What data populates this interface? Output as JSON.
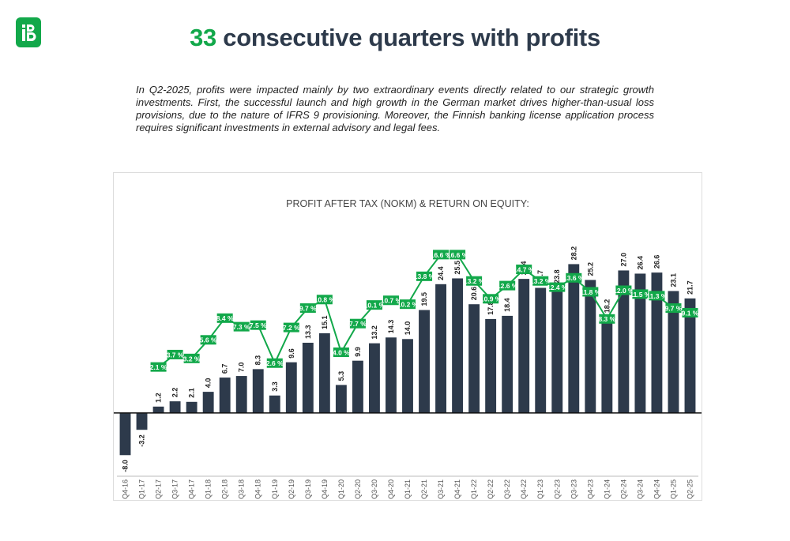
{
  "header": {
    "logo_icon": "company-logo-icon",
    "title_number": "33",
    "title_rest": " consecutive quarters with profits",
    "accent_color": "#12a84a",
    "title_color": "#2d3a4b"
  },
  "intro_text": "In Q2-2025, profits were impacted mainly by two extraordinary events directly related to our strategic growth investments.  First, the successful launch and high growth in the German market drives higher-than-usual loss provisions, due to the nature of IFRS 9 provisioning.   Moreover, the Finnish banking license application process requires significant investments in external advisory and legal fees.",
  "chart_data": {
    "type": "bar",
    "title": "PROFIT AFTER TAX (NOKM) & RETURN ON EQUITY:",
    "categories": [
      "Q4-16",
      "Q1-17",
      "Q2-17",
      "Q3-17",
      "Q4-17",
      "Q1-18",
      "Q2-18",
      "Q3-18",
      "Q4-18",
      "Q1-19",
      "Q2-19",
      "Q3-19",
      "Q4-19",
      "Q1-20",
      "Q2-20",
      "Q3-20",
      "Q4-20",
      "Q1-21",
      "Q2-21",
      "Q3-21",
      "Q4-21",
      "Q1-22",
      "Q2-22",
      "Q3-22",
      "Q4-22",
      "Q1-23",
      "Q2-23",
      "Q3-23",
      "Q4-23",
      "Q1-24",
      "Q2-24",
      "Q3-24",
      "Q4-24",
      "Q1-25",
      "Q2-25"
    ],
    "series": [
      {
        "kind": "bar",
        "color": "#2d3a4b",
        "values": [
          -8.0,
          -3.2,
          1.2,
          2.2,
          2.1,
          4.0,
          6.7,
          7.0,
          8.3,
          3.3,
          9.6,
          13.3,
          15.1,
          5.3,
          9.9,
          13.2,
          14.3,
          14.0,
          19.5,
          24.4,
          25.5,
          20.6,
          17.8,
          18.4,
          25.4,
          23.7,
          23.8,
          28.2,
          25.2,
          18.2,
          27.0,
          26.4,
          26.6,
          23.1,
          21.7
        ],
        "labels": [
          "-8.0",
          "-3.2",
          "1.2",
          "2.2",
          "2.1",
          "4.0",
          "6.7",
          "7.0",
          "8.3",
          "3.3",
          "9.6",
          "13.3",
          "15.1",
          "5.3",
          "9.9",
          "13.2",
          "14.3",
          "14.0",
          "19.5",
          "24.4",
          "25.5",
          "20.6",
          "17.8",
          "18.4",
          "25.4",
          "23.7",
          "23.8",
          "28.2",
          "25.2",
          "18.2",
          "27.0",
          "26.4",
          "26.6",
          "23.1",
          "21.7"
        ]
      },
      {
        "kind": "line",
        "color": "#12a84a",
        "values": [
          null,
          null,
          2.1,
          3.7,
          3.2,
          5.6,
          8.4,
          7.3,
          7.5,
          2.6,
          7.2,
          9.7,
          10.8,
          4.0,
          7.7,
          10.1,
          10.7,
          10.2,
          13.8,
          16.6,
          16.6,
          13.2,
          10.9,
          12.6,
          14.7,
          13.2,
          12.4,
          13.6,
          11.8,
          8.3,
          12.0,
          11.5,
          11.3,
          9.7,
          9.1
        ],
        "labels": [
          "",
          "",
          "2.1 %",
          "3.7 %",
          "3.2 %",
          "5.6 %",
          "8.4 %",
          "7.3 %",
          "7.5 %",
          "2.6 %",
          "7.2 %",
          "9.7 %",
          "10.8 %",
          "4.0 %",
          "7.7 %",
          "10.1 %",
          "10.7 %",
          "10.2 %",
          "13.8 %",
          "16.6 %",
          "16.6 %",
          "13.2 %",
          "10.9 %",
          "12.6 %",
          "14.7 %",
          "13.2 %",
          "12.4 %",
          "13.6 %",
          "11.8 %",
          "8.3 %",
          "12.0 %",
          "11.5 %",
          "11.3 %",
          "9.7 %",
          "9.1 %"
        ]
      }
    ],
    "bar_range": [
      -12,
      35
    ],
    "line_range": [
      -12,
      20
    ]
  }
}
